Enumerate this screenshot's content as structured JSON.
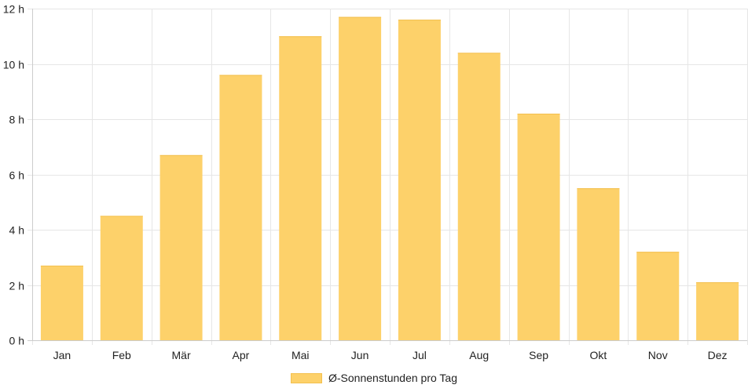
{
  "chart_data": {
    "type": "bar",
    "categories": [
      "Jan",
      "Feb",
      "Mär",
      "Apr",
      "Mai",
      "Jun",
      "Jul",
      "Aug",
      "Sep",
      "Okt",
      "Nov",
      "Dez"
    ],
    "series": [
      {
        "name": "Ø-Sonnenstunden pro Tag",
        "values": [
          2.7,
          4.5,
          6.7,
          9.6,
          11.0,
          11.7,
          11.6,
          10.4,
          8.2,
          5.5,
          3.2,
          2.1
        ]
      }
    ],
    "yticks": [
      "0 h",
      "2 h",
      "4 h",
      "6 h",
      "8 h",
      "10 h",
      "12 h"
    ],
    "ylim": [
      0,
      12
    ],
    "ytick_step": 2,
    "grid": true,
    "legend_position": "bottom",
    "bar_color": "#fdd16a",
    "bar_border_color": "#f3c04f",
    "grid_color": "#e6e6e6",
    "axis_color": "#cccccc"
  }
}
